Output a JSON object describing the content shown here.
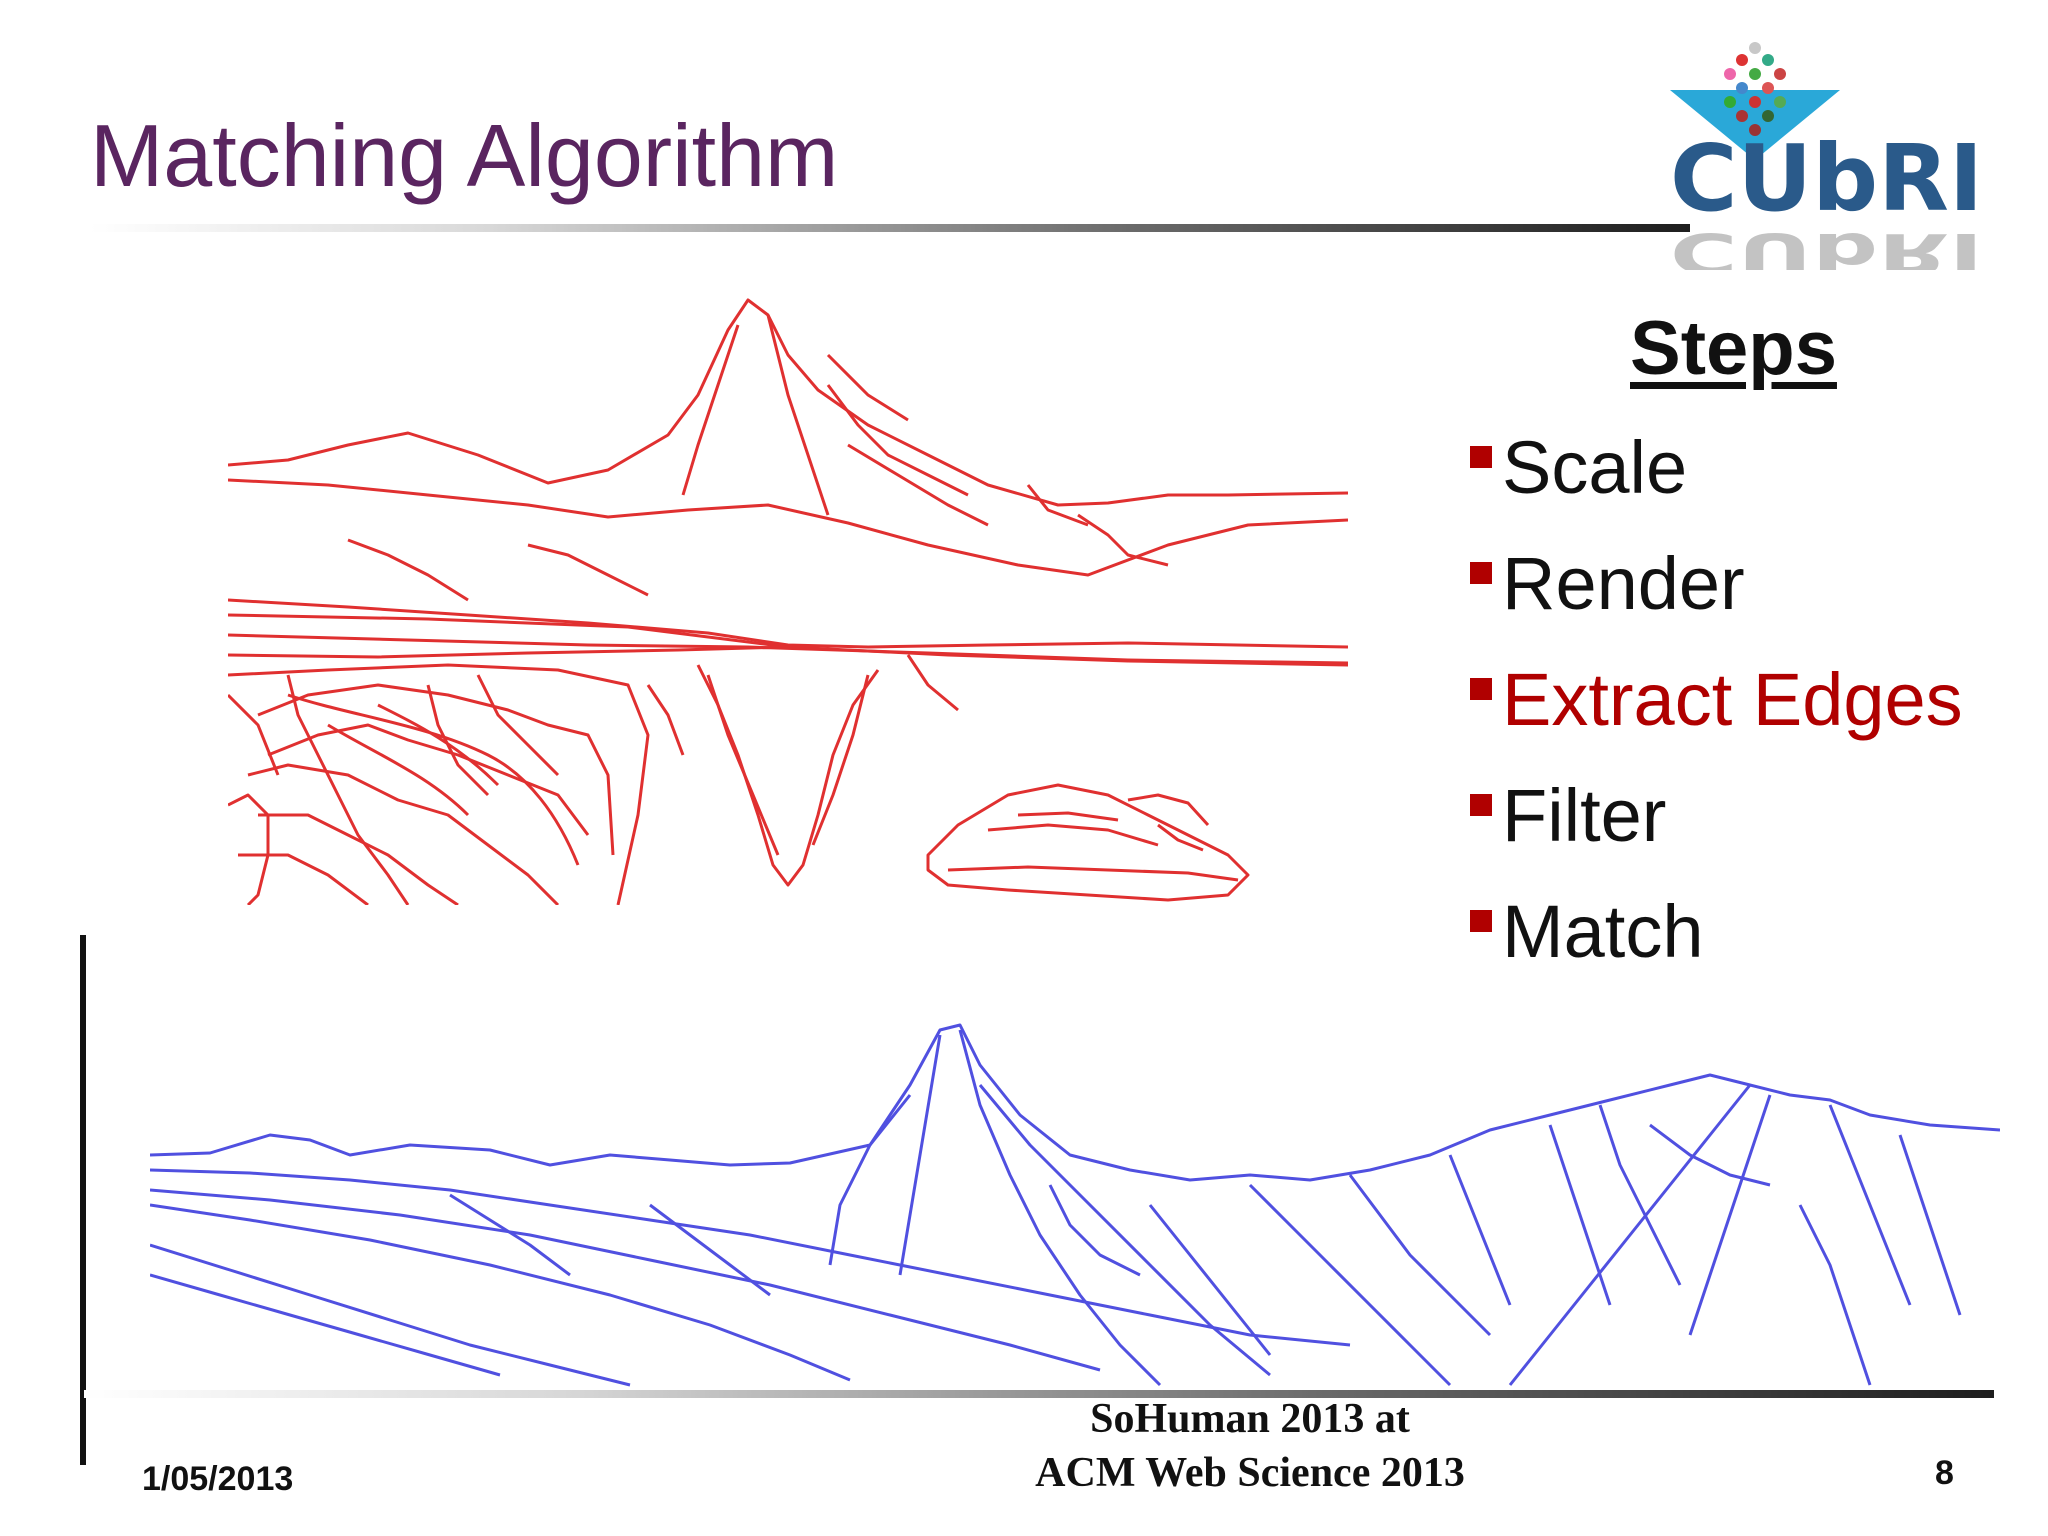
{
  "slide": {
    "title": "Matching Algorithm",
    "steps_heading": "Steps",
    "steps": [
      {
        "label": "Scale",
        "highlighted": false
      },
      {
        "label": "Render",
        "highlighted": false
      },
      {
        "label": "Extract Edges",
        "highlighted": true
      },
      {
        "label": "Filter",
        "highlighted": false
      },
      {
        "label": "Match",
        "highlighted": false
      }
    ]
  },
  "logo": {
    "text": "CUbRIK"
  },
  "footer": {
    "date": "1/05/2013",
    "venue_line1": "SoHuman 2013 at",
    "venue_line2": "ACM Web Science 2013",
    "page_number": "8"
  },
  "colors": {
    "title": "#5a2560",
    "highlight": "#b00000",
    "red_edges": "#e03030",
    "blue_edges": "#5050e0",
    "logo_text": "#2a5a8a",
    "logo_triangle": "#2aa8d8"
  },
  "images": [
    {
      "name": "photo-edge-map",
      "icon": "red-mountain-edge-image"
    },
    {
      "name": "render-edge-map",
      "icon": "blue-mountain-edge-image"
    }
  ]
}
